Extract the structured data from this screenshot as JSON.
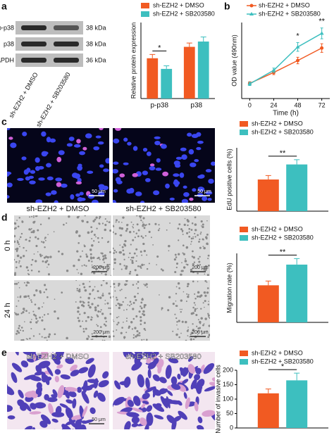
{
  "panel_labels": [
    "a",
    "b",
    "c",
    "d",
    "e"
  ],
  "blot": {
    "rows": [
      {
        "label": "p-p38",
        "size": "38 kDa"
      },
      {
        "label": "p38",
        "size": "38 kDa"
      },
      {
        "label": "GAPDH",
        "size": "36 kDa"
      }
    ],
    "lanes": [
      "sh-EZH2 + DMSO",
      "sh-EZH2 + SB203580"
    ]
  },
  "images": {
    "c": {
      "captions": [
        "sh-EZH2 + DMSO",
        "sh-EZH2 + SB203580"
      ],
      "scale": "50 μm"
    },
    "d": {
      "rows": [
        "0 h",
        "24 h"
      ],
      "scale": "200 μm"
    },
    "e": {
      "captions": [
        "sh-EZH2 + DMSO",
        "sh-EZH2 + SB203580"
      ],
      "scale": "50 μm"
    }
  },
  "chart_data": [
    {
      "type": "bar",
      "ylabel": "Relative protein expression",
      "categories": [
        "p-p38",
        "p38"
      ],
      "legend": "top",
      "series": [
        {
          "name": "sh-EZH2 + DMSO",
          "color": "#f15a22",
          "values": [
            0.53,
            0.68
          ],
          "errors": [
            0.05,
            0.05
          ]
        },
        {
          "name": "sh-EZH2 + SB203580",
          "color": "#3dbfbf",
          "values": [
            0.39,
            0.75
          ],
          "errors": [
            0.04,
            0.06
          ]
        }
      ],
      "ylim": [
        0,
        1.0
      ],
      "annotations": [
        "*",
        null
      ]
    },
    {
      "type": "line",
      "xlabel": "Time (h)",
      "ylabel": "OD value (490nm)",
      "x": [
        0,
        24,
        48,
        72
      ],
      "legend": "top",
      "series": [
        {
          "name": "sh-EZH2 + DMSO",
          "color": "#f15a22",
          "marker": "circle",
          "values": [
            0.28,
            0.48,
            0.7,
            0.93
          ],
          "errors": [
            0.03,
            0.04,
            0.06,
            0.08
          ]
        },
        {
          "name": "sh-EZH2 + SB203580",
          "color": "#3dbfbf",
          "marker": "triangle",
          "values": [
            0.27,
            0.52,
            0.95,
            1.2
          ],
          "errors": [
            0.03,
            0.04,
            0.08,
            0.1
          ]
        }
      ],
      "xlim": [
        -8,
        80
      ],
      "xticks": [
        0,
        24,
        48,
        72
      ],
      "ylim": [
        0,
        1.4
      ],
      "annotations": [
        null,
        null,
        "*",
        "**"
      ]
    },
    {
      "type": "bar",
      "ylabel": "EdU positive cells (%)",
      "legend": "top",
      "series": [
        {
          "name": "sh-EZH2 + DMSO",
          "color": "#f15a22",
          "values": [
            20
          ],
          "errors": [
            2.5
          ]
        },
        {
          "name": "sh-EZH2 + SB203580",
          "color": "#3dbfbf",
          "values": [
            29.5
          ],
          "errors": [
            3
          ]
        }
      ],
      "ylim": [
        0,
        40
      ],
      "annotations": [
        "**"
      ]
    },
    {
      "type": "bar",
      "ylabel": "Migration rate (%)",
      "legend": "top",
      "series": [
        {
          "name": "sh-EZH2 + DMSO",
          "color": "#f15a22",
          "values": [
            21.5
          ],
          "errors": [
            2.5
          ]
        },
        {
          "name": "sh-EZH2 + SB203580",
          "color": "#3dbfbf",
          "values": [
            33.5
          ],
          "errors": [
            3.5
          ]
        }
      ],
      "ylim": [
        0,
        40
      ],
      "annotations": [
        "**"
      ]
    },
    {
      "type": "bar",
      "ylabel": "Number of invasive cells",
      "legend": "top",
      "series": [
        {
          "name": "sh-EZH2 + DMSO",
          "color": "#f15a22",
          "values": [
            120
          ],
          "errors": [
            15
          ]
        },
        {
          "name": "sh-EZH2 + SB203580",
          "color": "#3dbfbf",
          "values": [
            165
          ],
          "errors": [
            25
          ]
        }
      ],
      "ylim": [
        0,
        200
      ],
      "yticks": [
        0,
        50,
        100,
        150,
        200
      ],
      "annotations": [
        "*"
      ]
    }
  ]
}
